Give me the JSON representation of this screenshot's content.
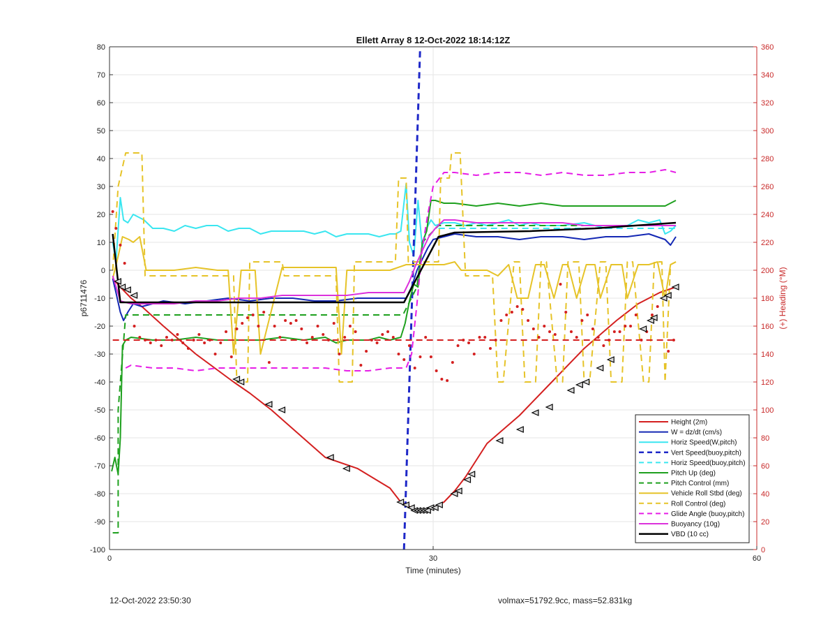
{
  "chart_data": {
    "type": "line",
    "title": "Ellett Array 8 12-Oct-2022 18:14:12Z",
    "xlabel": "Time (minutes)",
    "ylabel": "p6711476",
    "y2label": "(+) Heading (°M)",
    "xlim": [
      0,
      60
    ],
    "ylim": [
      -100,
      80
    ],
    "y2lim": [
      0,
      360
    ],
    "xticks": [
      "0",
      "30",
      "60"
    ],
    "yticks": [
      "-100",
      "-90",
      "-80",
      "-70",
      "-60",
      "-50",
      "-40",
      "-30",
      "-20",
      "-10",
      "0",
      "10",
      "20",
      "30",
      "40",
      "50",
      "60",
      "70",
      "80"
    ],
    "y2ticks": [
      "0",
      "20",
      "40",
      "60",
      "80",
      "100",
      "120",
      "140",
      "160",
      "180",
      "200",
      "220",
      "240",
      "260",
      "280",
      "300",
      "320",
      "340",
      "360"
    ],
    "grid": true,
    "legend_position": "bottom-right",
    "colors": {
      "height": "#d42020",
      "w": "#1428b4",
      "horiz_w": "#3ae6f0",
      "vert_buoy": "#1e28c8",
      "horiz_buoy": "#3ae6f0",
      "pitch_up": "#1ea01e",
      "pitch_control": "#1ea01e",
      "roll": "#e6c328",
      "roll_control": "#e6c328",
      "glide": "#e61ee6",
      "buoyancy": "#dc32dc",
      "vbd": "#000000",
      "heading": "#d42020",
      "axis2": "#c82828"
    },
    "series": [
      {
        "name": "Height (2m)",
        "key": "height",
        "style": "solid",
        "width": 2,
        "x": [
          0.3,
          1,
          2,
          3,
          5,
          8,
          11.5,
          13,
          15,
          20,
          23,
          26,
          27,
          27.5,
          28,
          28.5,
          29,
          29.5,
          30,
          31,
          32,
          33,
          35,
          38,
          41,
          44,
          47,
          49,
          51,
          52.5
        ],
        "y": [
          -3,
          -6,
          -10,
          -13,
          -20,
          -30,
          -40,
          -44,
          -50,
          -67,
          -71,
          -78,
          -83,
          -84,
          -85,
          -86,
          -86,
          -86,
          -85,
          -83,
          -79,
          -74,
          -62,
          -52,
          -40,
          -28,
          -18,
          -12,
          -8,
          -6
        ]
      },
      {
        "name": "W = dz/dt (cm/s)",
        "key": "w",
        "style": "solid",
        "width": 2,
        "x": [
          0.3,
          0.6,
          1.0,
          1.3,
          1.7,
          2.2,
          3,
          5,
          7,
          9,
          11,
          13,
          15,
          17,
          19,
          21,
          23,
          25,
          26.5,
          27.5,
          28,
          28.5,
          29,
          29.5,
          30,
          31,
          32,
          34,
          36,
          38,
          40,
          42,
          44,
          46,
          48,
          50,
          51.5,
          52,
          52.5
        ],
        "y": [
          -3,
          -8,
          -15,
          -18,
          -15,
          -12,
          -13,
          -11,
          -12,
          -11,
          -10,
          -11,
          -10,
          -10,
          -11,
          -11,
          -10,
          -10,
          -10,
          -10,
          -6,
          0,
          4,
          8,
          11,
          12,
          13,
          12,
          12,
          11,
          12,
          12,
          11,
          12,
          12,
          13,
          11,
          9,
          12
        ]
      },
      {
        "name": "Horiz Speed(W,pitch)",
        "key": "horiz_w",
        "style": "solid",
        "width": 2,
        "x": [
          0.3,
          0.6,
          1.0,
          1.3,
          1.7,
          2.2,
          3.2,
          4,
          5,
          6,
          7,
          8,
          9,
          10,
          11,
          12,
          13,
          14,
          15,
          16,
          17,
          18,
          19,
          20,
          21,
          22,
          23,
          24,
          25,
          26,
          26.5,
          27,
          27.5,
          27.8,
          28.2,
          28.6,
          29,
          29.4,
          29.8,
          30.2,
          31,
          32,
          33,
          34,
          35,
          36,
          37,
          38,
          39,
          40,
          42,
          44,
          46,
          48,
          49,
          50,
          51,
          51.5,
          52,
          52.5
        ],
        "y": [
          10,
          3,
          26,
          18,
          17,
          20,
          18,
          15,
          15,
          14,
          16,
          15,
          16,
          16,
          14,
          15,
          15,
          13,
          14,
          14,
          14,
          14,
          13,
          14,
          12,
          13,
          13,
          13,
          12,
          13,
          13,
          14,
          31,
          10,
          5,
          25,
          8,
          15,
          18,
          16,
          17,
          17,
          16,
          17,
          16,
          17,
          18,
          16,
          17,
          16,
          16,
          17,
          15,
          16,
          18,
          17,
          18,
          13,
          14,
          16
        ]
      },
      {
        "name": "Vert Speed(buoy,pitch)",
        "key": "vert_buoy",
        "style": "dashed",
        "width": 3,
        "x": [
          27.3,
          28.8
        ],
        "y": [
          -100,
          80
        ]
      },
      {
        "name": "Horiz Speed(buoy,pitch)",
        "key": "horiz_buoy",
        "style": "dashed",
        "width": 2,
        "x": [
          30.5,
          32,
          40,
          46,
          52.5
        ],
        "y": [
          15,
          15,
          15,
          15,
          15
        ]
      },
      {
        "name": "Pitch Up (deg)",
        "key": "pitch_up",
        "style": "solid",
        "width": 2,
        "x": [
          0.2,
          0.5,
          0.8,
          1.0,
          1.2,
          1.5,
          2,
          4,
          6,
          8,
          10,
          12,
          14,
          16,
          18,
          20,
          21,
          22,
          23,
          24,
          25,
          26,
          27,
          27.4,
          27.8,
          28.2,
          28.6,
          29,
          29.4,
          29.8,
          30.2,
          31,
          32,
          34,
          36,
          38,
          40,
          42,
          44,
          46,
          48,
          50,
          51.5,
          52.5
        ],
        "y": [
          -72,
          -67,
          -73,
          -60,
          -27,
          -25,
          -24,
          -25,
          -25,
          -24,
          -25,
          -25,
          -25,
          -24,
          -25,
          -24,
          -26,
          -25,
          -25,
          -25,
          -24,
          -25,
          -24,
          -19,
          -11,
          -5,
          -6,
          10,
          14,
          25,
          25,
          24,
          24,
          23,
          24,
          23,
          24,
          23,
          23,
          23,
          23,
          23,
          23,
          25
        ]
      },
      {
        "name": "Pitch Control (mm)",
        "key": "pitch_control",
        "style": "dashed",
        "width": 2,
        "x": [
          0.3,
          0.8,
          0.8,
          1.5,
          2,
          27,
          27.2,
          28.5,
          29,
          30.5,
          32,
          52.5
        ],
        "y": [
          -94,
          -94,
          -50,
          -16,
          -16,
          -16,
          -16,
          -6,
          10,
          16,
          16,
          16
        ]
      },
      {
        "name": "Vehicle Roll Stbd (deg)",
        "key": "roll",
        "style": "solid",
        "width": 2,
        "x": [
          0.3,
          0.8,
          1.2,
          1.8,
          2.2,
          2.8,
          3.4,
          4,
          6,
          8,
          10,
          11,
          11.5,
          12.2,
          12.8,
          13.5,
          14,
          16,
          18,
          20,
          21,
          21.5,
          22,
          22.5,
          26,
          27.5,
          28,
          29,
          31,
          32,
          32.6,
          33,
          35,
          36,
          37,
          37.8,
          38.8,
          39.5,
          40.3,
          41.2,
          42,
          42.5,
          43.3,
          44.2,
          45,
          45.5,
          46.5,
          47.5,
          48,
          49,
          50,
          50.8,
          51.5,
          52,
          52.5
        ],
        "y": [
          -3,
          5,
          12,
          11,
          10,
          12,
          0,
          0,
          0,
          1,
          0,
          0,
          -30,
          0,
          0,
          0,
          -30,
          1,
          1,
          1,
          1,
          -30,
          0,
          0,
          0,
          2,
          2,
          2,
          2,
          3,
          0,
          0,
          0,
          -2,
          2,
          -10,
          -10,
          2,
          2,
          -10,
          2,
          2,
          -10,
          2,
          2,
          -10,
          2,
          2,
          -10,
          2,
          2,
          3,
          -10,
          2,
          3
        ]
      },
      {
        "name": "Roll Control (deg)",
        "key": "roll_control",
        "style": "dashed",
        "width": 2,
        "x": [
          0.3,
          0.8,
          1.5,
          3,
          3.3,
          4,
          11.5,
          11.8,
          12.8,
          13,
          16,
          16.2,
          21,
          21.3,
          22.5,
          22.7,
          26.5,
          26.8,
          27.5,
          27.7,
          28.5,
          30.5,
          30.7,
          31.5,
          31.7,
          32.5,
          33,
          35.5,
          36,
          36.5,
          37.5,
          38,
          38.5,
          39.5,
          40,
          40.5,
          41.5,
          42,
          42.5,
          43.5,
          44,
          44.5,
          45.5,
          46,
          46.5,
          47.5,
          48,
          48.5,
          49.5,
          50,
          50.5,
          51.2,
          51.5,
          52,
          52.5
        ],
        "y": [
          0,
          30,
          42,
          42,
          -2,
          -2,
          -2,
          -40,
          -40,
          3,
          3,
          -2,
          -2,
          -40,
          -40,
          3,
          3,
          33,
          33,
          3,
          3,
          3,
          33,
          33,
          42,
          42,
          -2,
          -2,
          -40,
          -40,
          3,
          3,
          -40,
          -40,
          3,
          3,
          -40,
          -40,
          3,
          3,
          -40,
          -40,
          3,
          3,
          -40,
          -40,
          3,
          3,
          -40,
          -40,
          3,
          3,
          -40,
          2,
          3
        ]
      },
      {
        "name": "Glide Angle (buoy,pitch)",
        "key": "glide",
        "style": "dashed",
        "width": 2,
        "x": [
          1.5,
          2,
          4,
          6,
          8,
          10,
          12,
          14,
          16,
          18,
          20,
          22,
          24,
          26,
          27.5,
          28,
          28.5,
          29,
          29.5,
          30,
          31,
          32,
          34,
          36,
          38,
          40,
          42,
          44,
          46,
          48,
          50,
          51.5,
          52.5
        ],
        "y": [
          -35,
          -34,
          -35,
          -35,
          -36,
          -35,
          -35,
          -35,
          -35,
          -35,
          -35,
          -36,
          -36,
          -35,
          -35,
          -30,
          -12,
          8,
          20,
          30,
          35,
          35,
          34,
          35,
          35,
          34,
          35,
          34,
          34,
          35,
          35,
          36,
          35
        ]
      },
      {
        "name": "Buoyancy (10g)",
        "key": "buoyancy",
        "style": "solid",
        "width": 2,
        "x": [
          0.3,
          1,
          2,
          4,
          6,
          8,
          10,
          12,
          14,
          16,
          18,
          20,
          22,
          24,
          26,
          27.3,
          27.8,
          28.4,
          29,
          29.6,
          30.2,
          31,
          32,
          34,
          36,
          38,
          40,
          42,
          44,
          46,
          48,
          50,
          52.5
        ],
        "y": [
          -2,
          -11,
          -12,
          -12,
          -12,
          -11,
          -11,
          -10,
          -10,
          -9,
          -9,
          -9,
          -9,
          -8,
          -8,
          -8,
          -4,
          2,
          7,
          12,
          15,
          18,
          18,
          17,
          17,
          17,
          17,
          17,
          16,
          16,
          16,
          16,
          16
        ]
      },
      {
        "name": "VBD (10 cc)",
        "key": "vbd",
        "style": "solid",
        "width": 2.5,
        "x": [
          0.3,
          1,
          27.3,
          30.5,
          32,
          39,
          45,
          52.5
        ],
        "y": [
          13,
          -11.5,
          -11.5,
          12,
          13.5,
          14,
          15,
          17
        ]
      }
    ],
    "heading": {
      "name": "Heading",
      "axis": "right",
      "style": "dots",
      "mean": 150,
      "x": [
        0.3,
        0.6,
        1,
        1.4,
        1.8,
        2.3,
        2.8,
        3.3,
        3.8,
        4.3,
        4.8,
        5.3,
        5.8,
        6.3,
        6.8,
        7.3,
        7.8,
        8.3,
        8.8,
        9.3,
        9.8,
        10.3,
        10.8,
        11.3,
        11.8,
        12.3,
        12.8,
        13.3,
        13.8,
        14.3,
        14.8,
        15.3,
        15.8,
        16.3,
        16.8,
        17.3,
        17.8,
        18.3,
        18.8,
        19.3,
        19.8,
        20.3,
        20.8,
        21.3,
        21.8,
        22.3,
        22.8,
        23.3,
        23.8,
        24.3,
        24.8,
        25.3,
        25.8,
        26.3,
        26.8,
        27.3,
        27.8,
        28.3,
        28.8,
        29.3,
        29.8,
        30.3,
        30.8,
        31.3,
        31.8,
        32.3,
        32.8,
        33.3,
        33.8,
        34.3,
        34.8,
        35.3,
        35.8,
        36.3,
        36.8,
        37.3,
        37.8,
        38.3,
        38.8,
        39.3,
        39.8,
        40.3,
        40.8,
        41.3,
        41.8,
        42.3,
        42.8,
        43.3,
        43.8,
        44.3,
        44.8,
        45.3,
        45.8,
        46.3,
        46.8,
        47.3,
        47.8,
        48.3,
        48.8,
        49.3,
        49.8,
        50.3,
        50.8,
        51.3,
        51.8,
        52.3
      ],
      "y": [
        242,
        230,
        218,
        205,
        185,
        160,
        152,
        150,
        148,
        150,
        146,
        152,
        150,
        154,
        148,
        144,
        150,
        154,
        148,
        150,
        140,
        148,
        156,
        138,
        158,
        162,
        166,
        168,
        160,
        170,
        134,
        160,
        152,
        164,
        162,
        164,
        158,
        148,
        152,
        160,
        154,
        150,
        162,
        140,
        152,
        160,
        156,
        132,
        142,
        150,
        148,
        154,
        156,
        152,
        140,
        136,
        146,
        130,
        138,
        152,
        138,
        128,
        122,
        121,
        134,
        146,
        150,
        148,
        140,
        152,
        152,
        144,
        150,
        164,
        168,
        170,
        174,
        172,
        164,
        158,
        152,
        160,
        156,
        154,
        190,
        170,
        156,
        152,
        164,
        168,
        158,
        152,
        146,
        150,
        156,
        156,
        160,
        160,
        168,
        150,
        156,
        168,
        174,
        180,
        142,
        150
      ]
    },
    "height_markers": {
      "x": [
        0.8,
        1.2,
        1.7,
        2.3,
        11.8,
        12.2,
        14.8,
        16,
        20.5,
        22,
        27,
        27.5,
        28,
        28.3,
        28.6,
        28.9,
        29.2,
        29.5,
        29.8,
        30.2,
        30.6,
        32,
        32.4,
        33.2,
        33.6,
        36.2,
        38.1,
        39.5,
        40.8,
        42.8,
        43.6,
        44.2,
        45.5,
        46.5,
        49.5,
        50.2,
        50.5,
        51.4,
        51.8,
        52.5
      ],
      "y": [
        -4,
        -6,
        -7,
        -9,
        -39,
        -40,
        -48,
        -50,
        -67,
        -71,
        -83,
        -84,
        -85,
        -86,
        -86,
        -86,
        -86,
        -86,
        -85,
        -85,
        -84,
        -80,
        -79,
        -75,
        -73,
        -61,
        -57,
        -51,
        -49,
        -43,
        -41,
        -40,
        -35,
        -32,
        -21,
        -18,
        -17,
        -10,
        -9,
        -6
      ]
    }
  },
  "footer": {
    "left": "12-Oct-2022 23:50:30",
    "right": "volmax=51792.9cc, mass=52.831kg"
  }
}
